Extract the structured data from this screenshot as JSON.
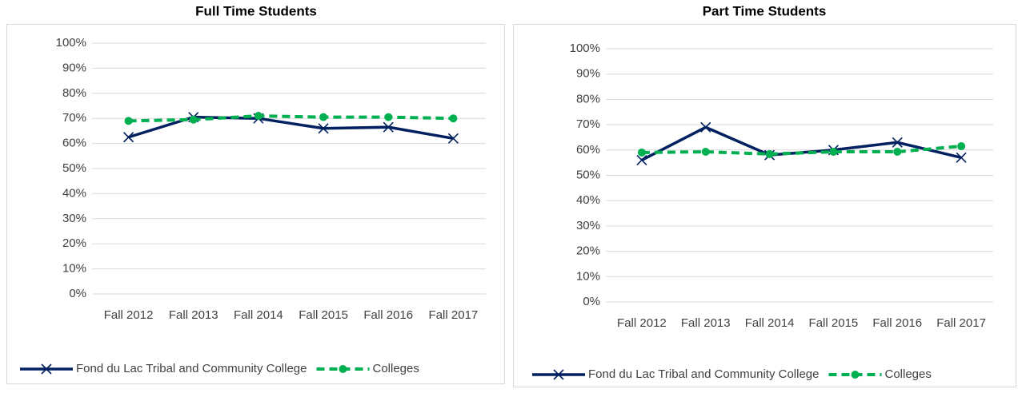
{
  "chart_data": [
    {
      "type": "line",
      "title": "Full Time Students",
      "categories": [
        "Fall 2012",
        "Fall 2013",
        "Fall 2014",
        "Fall 2015",
        "Fall 2016",
        "Fall 2017"
      ],
      "series": [
        {
          "name": "Fond du Lac Tribal and Community College",
          "color": "#002060",
          "values": [
            62.5,
            70.5,
            70,
            66,
            66.5,
            62
          ]
        },
        {
          "name": "Colleges",
          "color": "#00b050",
          "values": [
            69,
            69.5,
            71,
            70.5,
            70.5,
            70
          ]
        }
      ],
      "ylim": [
        0,
        100
      ],
      "yticks": [
        {
          "value": 0,
          "label": "0%"
        },
        {
          "value": 10,
          "label": "10%"
        },
        {
          "value": 20,
          "label": "20%"
        },
        {
          "value": 30,
          "label": "30%"
        },
        {
          "value": 40,
          "label": "40%"
        },
        {
          "value": 50,
          "label": "50%"
        },
        {
          "value": 60,
          "label": "60%"
        },
        {
          "value": 70,
          "label": "70%"
        },
        {
          "value": 80,
          "label": "80%"
        },
        {
          "value": 90,
          "label": "90%"
        },
        {
          "value": 100,
          "label": "100%"
        }
      ],
      "grid": true,
      "legend": "bottom"
    },
    {
      "type": "line",
      "title": "Part Time Students",
      "categories": [
        "Fall 2012",
        "Fall 2013",
        "Fall 2014",
        "Fall 2015",
        "Fall 2016",
        "Fall 2017"
      ],
      "series": [
        {
          "name": "Fond du Lac Tribal and Community College",
          "color": "#002060",
          "values": [
            56,
            69,
            58,
            60,
            63,
            57
          ]
        },
        {
          "name": "Colleges",
          "color": "#00b050",
          "values": [
            59,
            59.3,
            58.4,
            59.3,
            59.3,
            61.5
          ]
        }
      ],
      "ylim": [
        0,
        100
      ],
      "yticks": [
        {
          "value": 0,
          "label": "0%"
        },
        {
          "value": 10,
          "label": "10%"
        },
        {
          "value": 20,
          "label": "20%"
        },
        {
          "value": 30,
          "label": "30%"
        },
        {
          "value": 40,
          "label": "40%"
        },
        {
          "value": 50,
          "label": "50%"
        },
        {
          "value": 60,
          "label": "60%"
        },
        {
          "value": 70,
          "label": "70%"
        },
        {
          "value": 80,
          "label": "80%"
        },
        {
          "value": 90,
          "label": "90%"
        },
        {
          "value": 100,
          "label": "100%"
        }
      ],
      "grid": true,
      "legend": "bottom"
    }
  ]
}
